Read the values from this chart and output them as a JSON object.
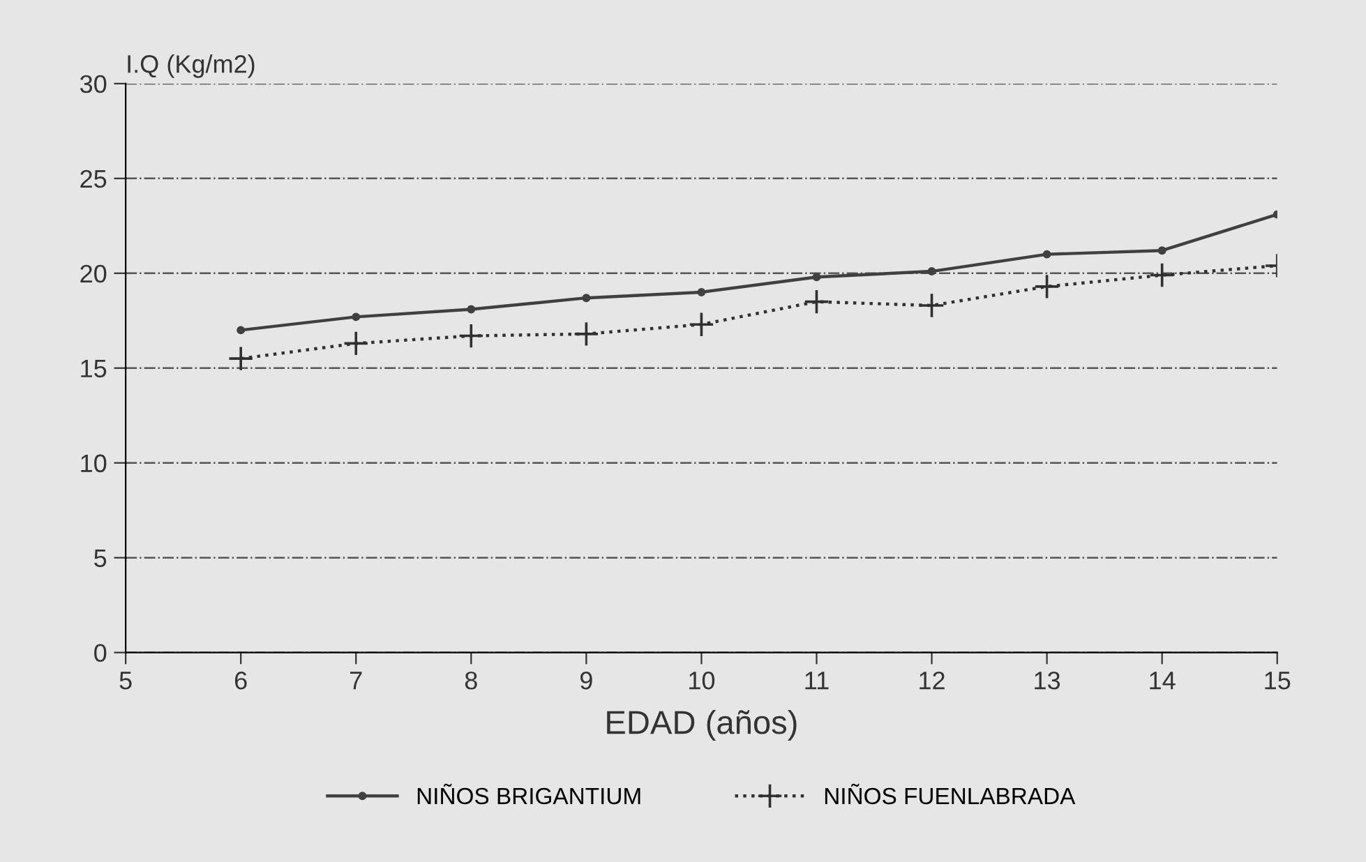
{
  "chart_data": {
    "type": "line",
    "ylabel": "I.Q (Kg/m2)",
    "xlabel": "EDAD (años)",
    "x": [
      6,
      7,
      8,
      9,
      10,
      11,
      12,
      13,
      14,
      15
    ],
    "series": [
      {
        "name": "NIÑOS BRIGANTIUM",
        "color": "#404040",
        "marker": "circle",
        "line_style": "solid",
        "values": [
          17.0,
          17.7,
          18.1,
          18.7,
          19.0,
          19.8,
          20.1,
          21.0,
          21.2,
          23.1
        ]
      },
      {
        "name": "NIÑOS FUENLABRADA",
        "color": "#303030",
        "marker": "cross",
        "line_style": "dotted",
        "values": [
          15.5,
          16.3,
          16.7,
          16.8,
          17.3,
          18.5,
          18.3,
          19.3,
          19.9,
          20.4
        ]
      }
    ],
    "xlim": [
      5,
      15
    ],
    "xticks": [
      5,
      6,
      7,
      8,
      9,
      10,
      11,
      12,
      13,
      14,
      15
    ],
    "ylim": [
      0,
      30
    ],
    "yticks": [
      0,
      5,
      10,
      15,
      20,
      25,
      30
    ],
    "grid": "y",
    "legend": "bottom"
  }
}
